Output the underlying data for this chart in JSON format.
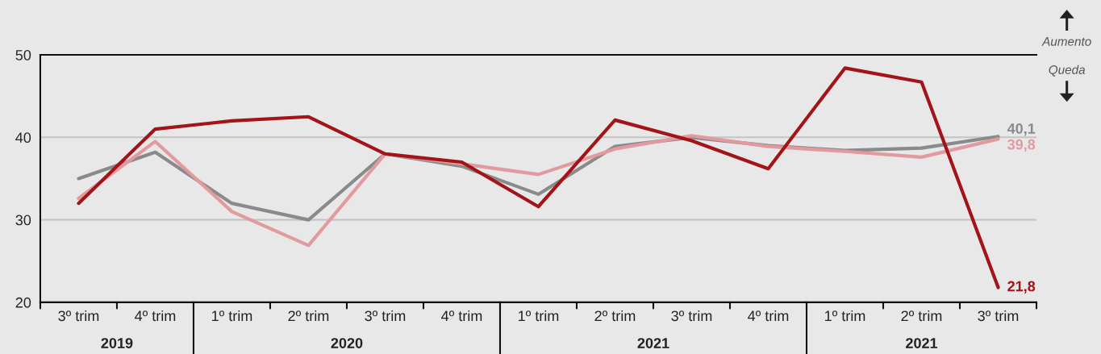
{
  "chart_data": {
    "type": "line",
    "categories": [
      "3º trim",
      "4º trim",
      "1º trim",
      "2º trim",
      "3º trim",
      "4º trim",
      "1º trim",
      "2º trim",
      "3º trim",
      "4º trim",
      "1º trim",
      "2º trim",
      "3º trim"
    ],
    "series": [
      {
        "color": "#8a8a8d",
        "values": [
          35.0,
          38.2,
          32.0,
          30.0,
          38.0,
          36.5,
          33.1,
          38.9,
          40.0,
          39.0,
          38.4,
          38.7,
          40.1
        ],
        "value_labels": [
          null,
          null,
          null,
          null,
          null,
          null,
          null,
          null,
          null,
          null,
          null,
          null,
          "40,1"
        ]
      },
      {
        "color": "#e39a9e",
        "values": [
          32.6,
          39.5,
          31.0,
          26.9,
          38.0,
          36.8,
          35.5,
          38.6,
          40.2,
          38.9,
          38.3,
          37.6,
          39.8
        ],
        "value_labels": [
          null,
          null,
          null,
          null,
          null,
          null,
          null,
          null,
          null,
          null,
          null,
          null,
          "39,8"
        ]
      },
      {
        "color": "#a31419",
        "values": [
          32.0,
          41.0,
          42.0,
          42.5,
          38.0,
          37.0,
          31.6,
          42.1,
          39.6,
          36.2,
          48.4,
          46.7,
          21.8
        ],
        "value_labels": [
          null,
          null,
          null,
          null,
          null,
          null,
          null,
          null,
          null,
          null,
          null,
          null,
          "21,8"
        ]
      }
    ],
    "ylim": [
      20,
      50
    ],
    "yticks": [
      20,
      30,
      40,
      50
    ],
    "grid": "y",
    "marker": "none",
    "line_style": "solid",
    "annotations": [
      "2019",
      "2020",
      "2021",
      "2021",
      "Aumento",
      "Queda"
    ]
  }
}
